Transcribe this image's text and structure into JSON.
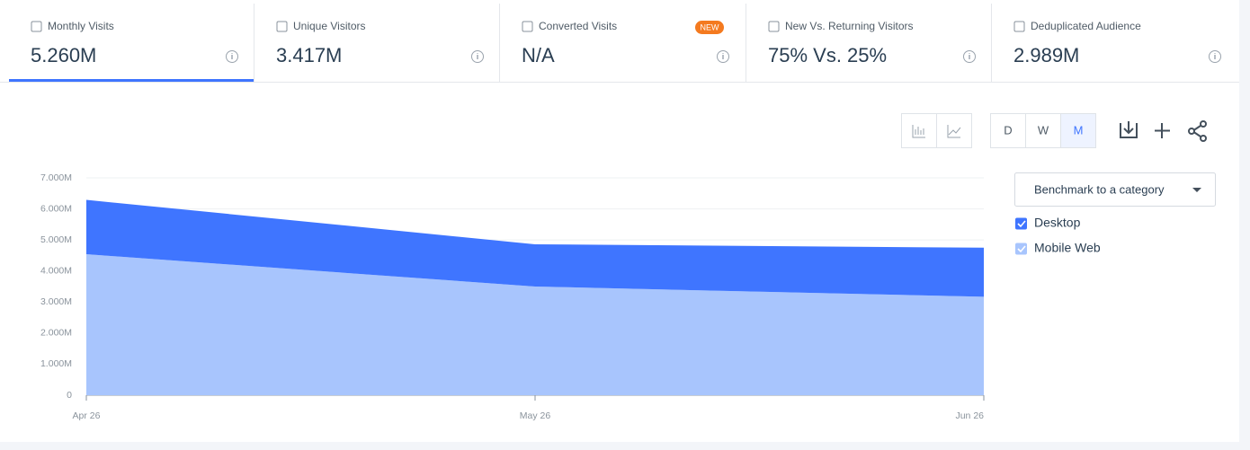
{
  "metrics": [
    {
      "label": "Monthly Visits",
      "value": "5.260M"
    },
    {
      "label": "Unique Visitors",
      "value": "3.417M"
    },
    {
      "label": "Converted Visits",
      "value": "N/A"
    },
    {
      "label": "New Vs. Returning Visitors",
      "value": "75% Vs. 25%"
    },
    {
      "label": "Deduplicated Audience",
      "value": "2.989M"
    }
  ],
  "new_badge": "NEW",
  "granularity": [
    "D",
    "W",
    "M"
  ],
  "benchmark": "Benchmark to a category",
  "chart_data": {
    "type": "area",
    "stacked": true,
    "categories": [
      "Apr 26",
      "May 26",
      "Jun 26"
    ],
    "series": [
      {
        "name": "Desktop",
        "color": "#3f75ff",
        "values": [
          1750000,
          1360000,
          1580000
        ]
      },
      {
        "name": "Mobile Web",
        "color": "#a8c5fd",
        "values": [
          4540000,
          3500000,
          3170000
        ]
      }
    ],
    "ylim": [
      0,
      7000000
    ],
    "yticks": [
      0,
      {
        "value": 1000000,
        "label": "1.000M"
      },
      {
        "value": 2000000,
        "label": "2.000M"
      },
      {
        "value": 3000000,
        "label": "3.000M"
      },
      {
        "value": 4000000,
        "label": "4.000M"
      },
      {
        "value": 5000000,
        "label": "5.000M"
      },
      {
        "value": 6000000,
        "label": "6.000M"
      },
      {
        "value": 7000000,
        "label": "7.000M"
      }
    ],
    "grid": true
  }
}
